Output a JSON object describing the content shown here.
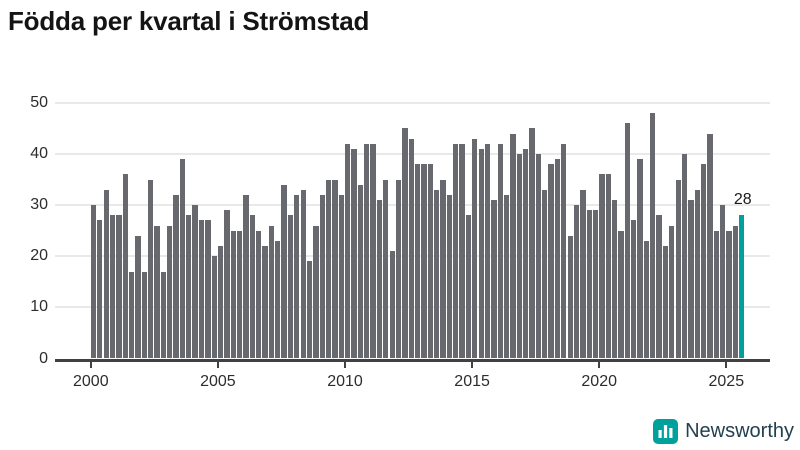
{
  "title": "Födda per kvartal i Strömstad",
  "branding": {
    "name": "Newsworthy",
    "icon": "newsworthy-bar-chart-bubble-icon"
  },
  "colors": {
    "bar": "#68686f",
    "highlight": "#00a19c",
    "title_text": "#141414",
    "axis_text": "#2d2d2d",
    "axis_line": "#414141",
    "gridline": "#e9e9e9",
    "brand_text": "#24404e"
  },
  "chart_data": {
    "type": "bar",
    "title": "Födda per kvartal i Strömstad",
    "series_name": "Födda per kvartal",
    "frequency": "quarterly",
    "start_period": "2000Q1",
    "end_period": "2025Q3",
    "values": [
      30,
      27,
      33,
      28,
      28,
      36,
      17,
      24,
      17,
      35,
      26,
      17,
      26,
      32,
      39,
      28,
      30,
      27,
      27,
      20,
      22,
      29,
      25,
      25,
      32,
      28,
      25,
      22,
      26,
      23,
      34,
      28,
      32,
      33,
      19,
      26,
      32,
      35,
      35,
      32,
      42,
      41,
      34,
      42,
      42,
      31,
      35,
      21,
      35,
      45,
      43,
      38,
      38,
      38,
      33,
      35,
      32,
      42,
      42,
      28,
      43,
      41,
      42,
      31,
      42,
      32,
      44,
      40,
      41,
      45,
      40,
      33,
      38,
      39,
      42,
      24,
      30,
      33,
      29,
      29,
      36,
      36,
      31,
      25,
      46,
      27,
      39,
      23,
      48,
      28,
      22,
      26,
      35,
      40,
      31,
      33,
      38,
      44,
      25,
      30,
      25,
      26,
      28
    ],
    "highlight_index": 102,
    "highlight_label": "28",
    "xlabel": "",
    "ylabel": "",
    "ylim": [
      0,
      50
    ],
    "yticks": [
      0,
      10,
      20,
      30,
      40,
      50
    ],
    "xticks": [
      2000,
      2005,
      2010,
      2015,
      2020,
      2025
    ],
    "grid": "horizontal",
    "legend": "none"
  }
}
